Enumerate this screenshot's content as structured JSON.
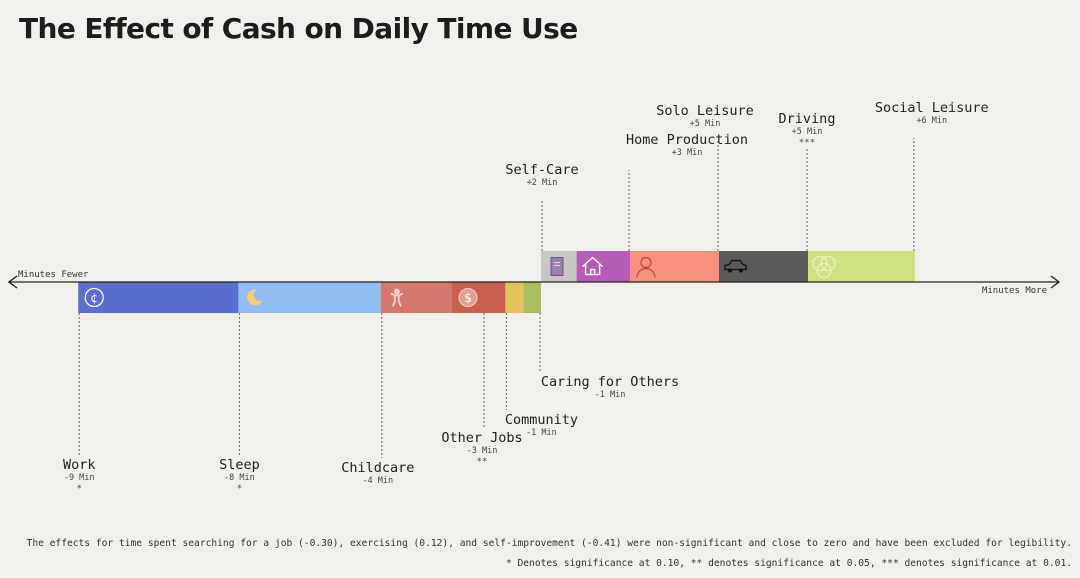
{
  "title": "The Effect of Cash on Daily Time Use",
  "footnotes": {
    "excluded": "The effects for time spent searching for a job (-0.30), exercising (0.12), and self-improvement (-0.41) were non-significant and close to zero and have been excluded for legibility.",
    "significance": "* Denotes significance at 0.10, ** denotes significance at 0.05, *** denotes significance at 0.01."
  },
  "chart_data": {
    "type": "bar",
    "subtype": "horizontal diverging stacked bar",
    "title": "The Effect of Cash on Daily Time Use",
    "xlabel_left": "Minutes Fewer",
    "xlabel_right": "Minutes More",
    "unit": "Min",
    "categories": [
      "Work",
      "Sleep",
      "Childcare",
      "Other Jobs",
      "Community",
      "Caring for Others",
      "Self-Care",
      "Home Production",
      "Solo Leisure",
      "Driving",
      "Social Leisure"
    ],
    "values": [
      -9,
      -8,
      -4,
      -3,
      -1,
      -1,
      2,
      3,
      5,
      5,
      6
    ],
    "value_labels": [
      "-9 Min",
      "-8 Min",
      "-4 Min",
      "-3 Min",
      "-1 Min",
      "-1 Min",
      "+2 Min",
      "+3 Min",
      "+5 Min",
      "+5 Min",
      "+6 Min"
    ],
    "significance": [
      "*",
      "*",
      "",
      "**",
      "",
      "",
      "",
      "",
      "",
      "***",
      ""
    ],
    "colors": [
      "#5b6fd0",
      "#92bcf2",
      "#d5776a",
      "#c8604e",
      "#e2c25a",
      "#a9bd5a",
      "#c9c7c4",
      "#b55cb5",
      "#f8917b",
      "#5a5a5a",
      "#cde082"
    ],
    "icons": [
      "cent-coin-icon",
      "moon-sleep-icon",
      "child-icon",
      "dollar-coin-icon",
      "",
      "",
      "book-icon",
      "house-icon",
      "person-icon",
      "car-icon",
      "overlapping-circles-icon"
    ]
  }
}
